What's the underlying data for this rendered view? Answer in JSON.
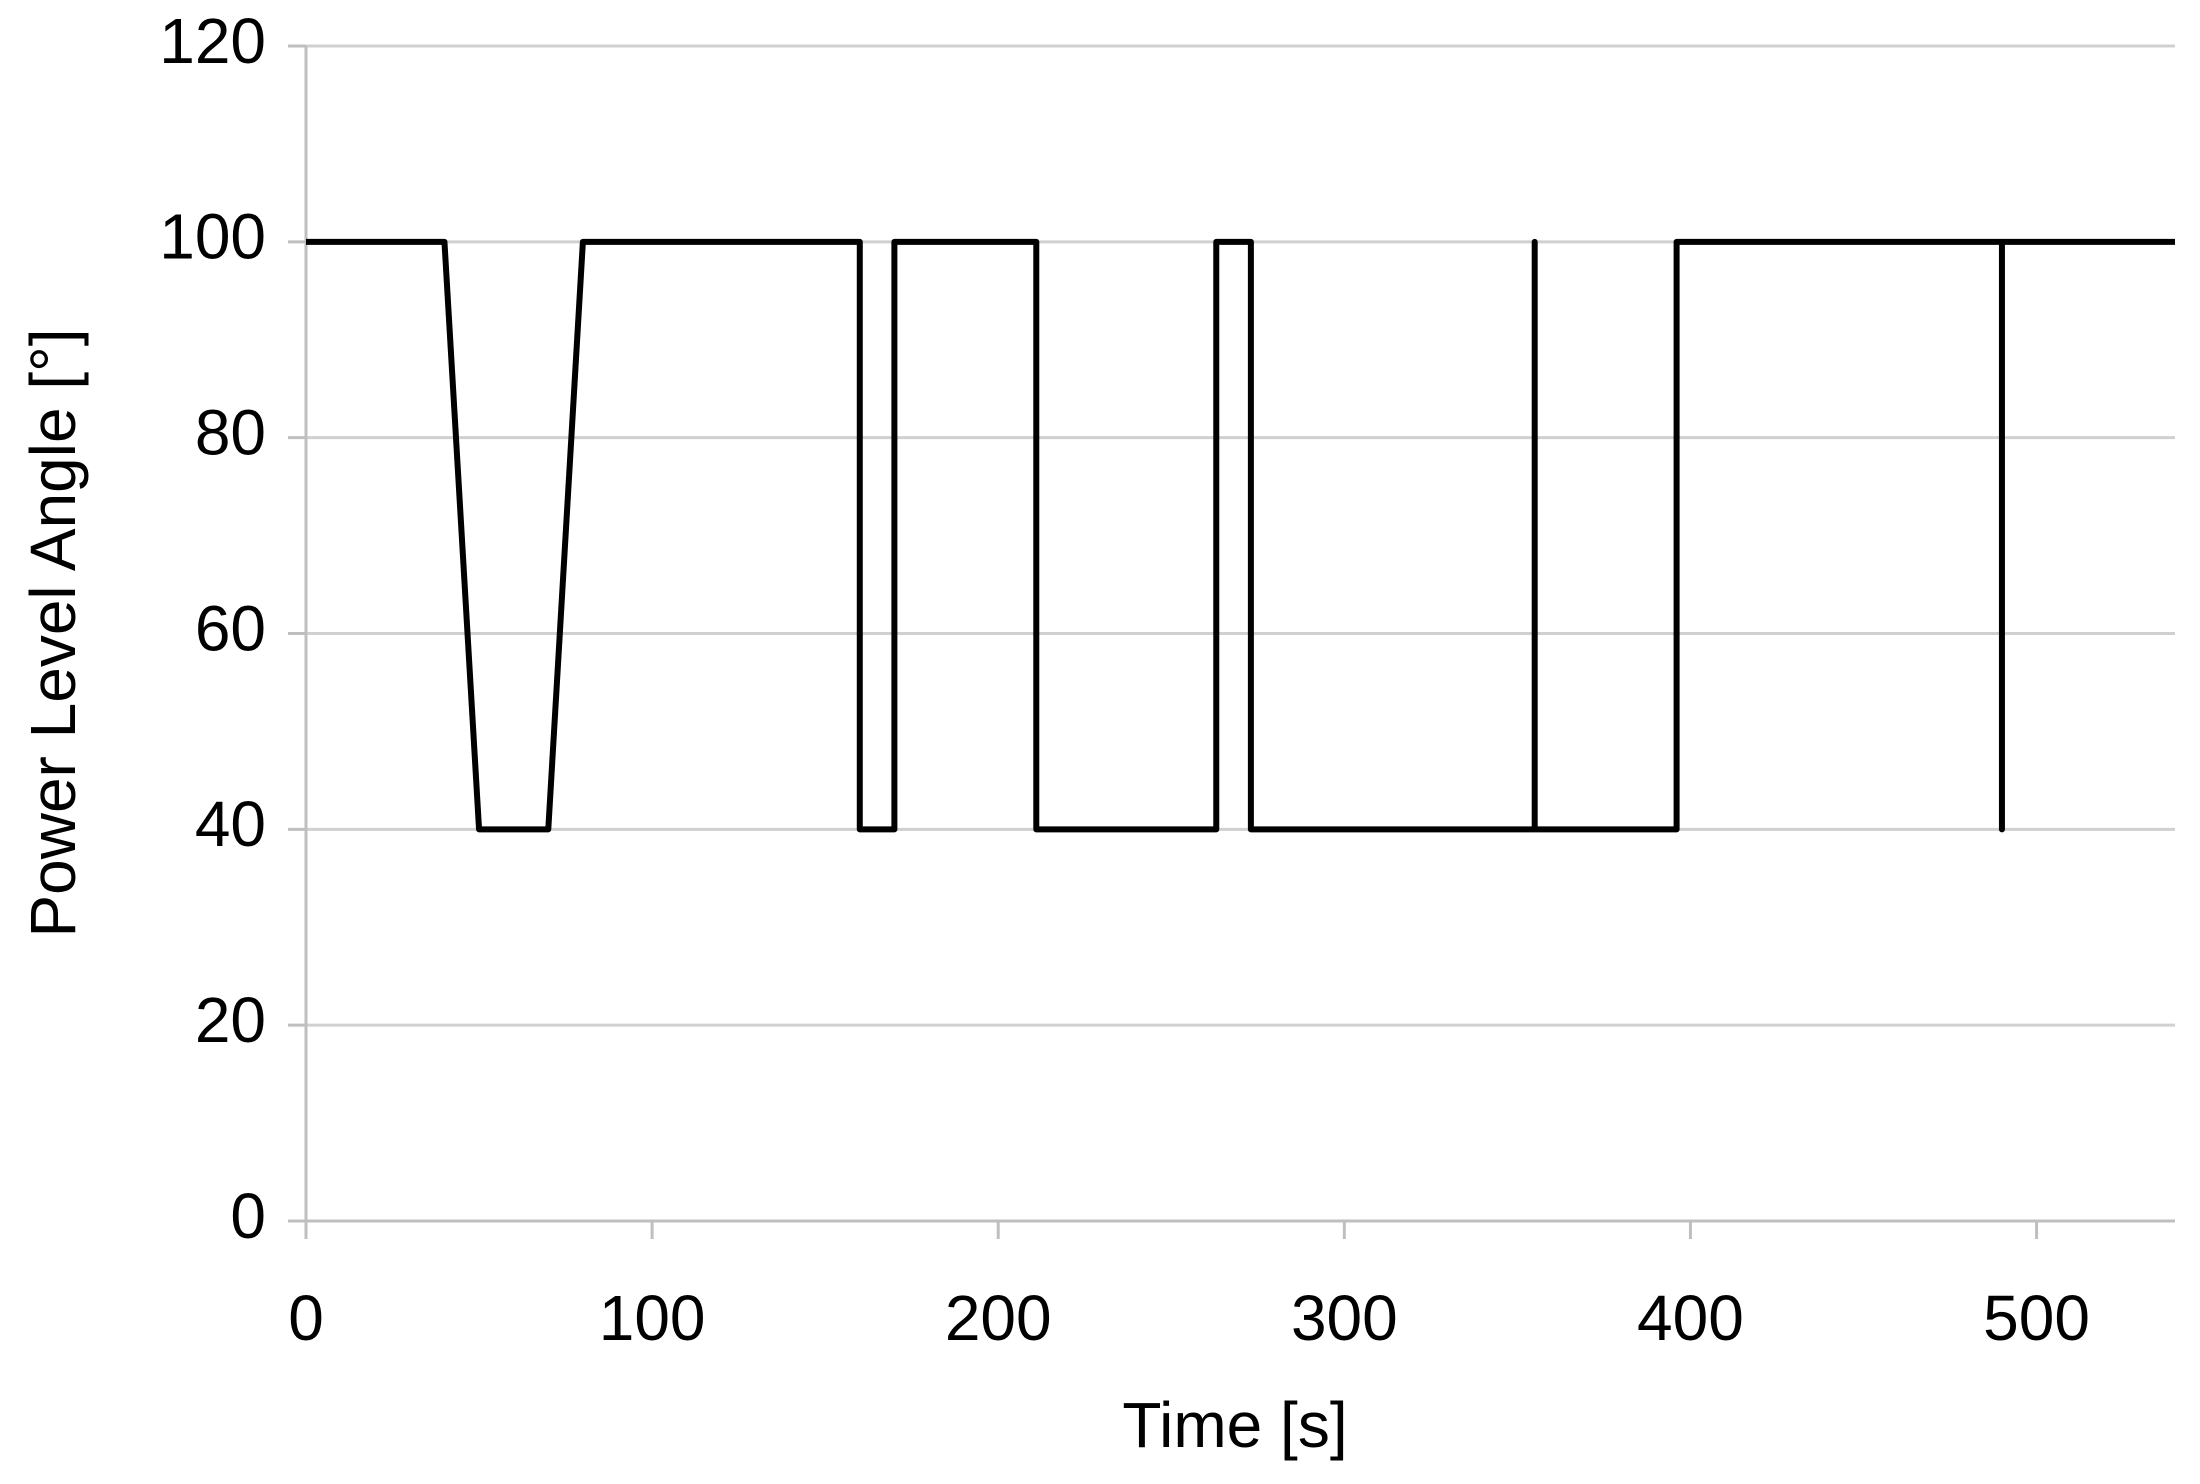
{
  "chart_data": {
    "type": "line",
    "x_label": "Time [s]",
    "y_label": "Power Level Angle [°]",
    "x": [
      0,
      40,
      50,
      70,
      80,
      160,
      160,
      170,
      170,
      211,
      211,
      263,
      263,
      273,
      273,
      355,
      355,
      355,
      396,
      396,
      490,
      490,
      490,
      540
    ],
    "series": [
      {
        "color": "#000000",
        "values": [
          100,
          100,
          40,
          40,
          100,
          100,
          40,
          40,
          100,
          100,
          40,
          40,
          100,
          100,
          40,
          40,
          100,
          40,
          40,
          100,
          100,
          40,
          100,
          100
        ]
      }
    ],
    "xlim": [
      0,
      540
    ],
    "xticks": [
      0,
      100,
      200,
      300,
      400,
      500
    ],
    "ylim": [
      0,
      120
    ],
    "yticks": [
      0,
      20,
      40,
      60,
      80,
      100,
      120
    ],
    "grid": true
  }
}
